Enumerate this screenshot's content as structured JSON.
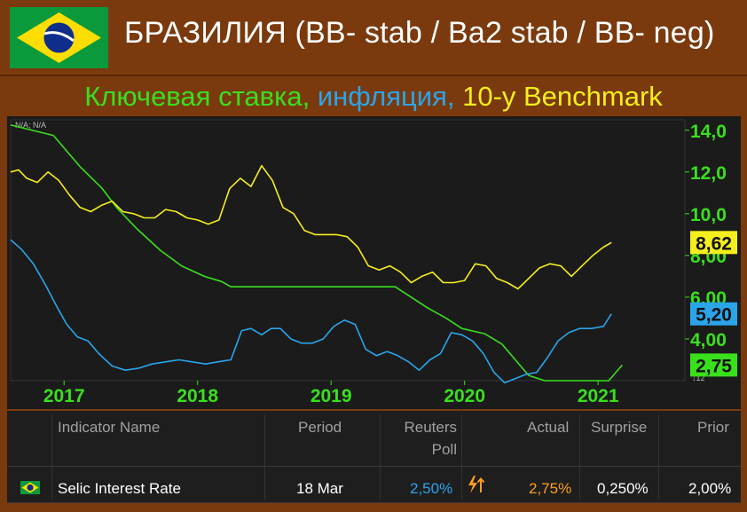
{
  "header": {
    "title": "БРАЗИЛИЯ (BB- stab / Ba2 stab / BB- neg)",
    "flag_icon": "brazil-flag-icon"
  },
  "subtitle": {
    "part1": "Ключевая ставка,",
    "part2": " инфляция,",
    "part3": " 10-y Benchmark",
    "color1": "#39e01c",
    "color2": "#2aa5ea",
    "color3": "#f5ee1c"
  },
  "chart_data": {
    "type": "line",
    "corner_label": "-N/A; N/A",
    "scale_label": "↓12",
    "x_ticks": [
      "2017",
      "2018",
      "2019",
      "2020",
      "2021"
    ],
    "y_ticks": [
      "4,00",
      "6,00",
      "8,00",
      "10,0",
      "12,0",
      "14,0"
    ],
    "ylim": [
      2.0,
      14.5
    ],
    "xlim": [
      2016.6,
      2021.65
    ],
    "series": [
      {
        "color": "#39e01c",
        "last_label": "2,75",
        "points": [
          [
            2016.6,
            14.25
          ],
          [
            2016.92,
            13.75
          ],
          [
            2017.12,
            12.25
          ],
          [
            2017.28,
            11.25
          ],
          [
            2017.4,
            10.25
          ],
          [
            2017.55,
            9.25
          ],
          [
            2017.72,
            8.25
          ],
          [
            2017.88,
            7.5
          ],
          [
            2018.05,
            7.0
          ],
          [
            2018.18,
            6.75
          ],
          [
            2018.25,
            6.5
          ],
          [
            2019.48,
            6.5
          ],
          [
            2019.6,
            6.0
          ],
          [
            2019.72,
            5.5
          ],
          [
            2019.86,
            5.0
          ],
          [
            2019.98,
            4.5
          ],
          [
            2020.15,
            4.25
          ],
          [
            2020.28,
            3.75
          ],
          [
            2020.38,
            3.0
          ],
          [
            2020.48,
            2.25
          ],
          [
            2020.6,
            2.0
          ],
          [
            2021.0,
            2.0
          ],
          [
            2021.08,
            2.0
          ],
          [
            2021.18,
            2.75
          ]
        ]
      },
      {
        "color": "#2aa5ea",
        "last_label": "5,20",
        "points": [
          [
            2016.6,
            8.75
          ],
          [
            2016.68,
            8.3
          ],
          [
            2016.77,
            7.6
          ],
          [
            2016.86,
            6.6
          ],
          [
            2016.95,
            5.5
          ],
          [
            2017.02,
            4.7
          ],
          [
            2017.1,
            4.1
          ],
          [
            2017.18,
            3.9
          ],
          [
            2017.26,
            3.3
          ],
          [
            2017.36,
            2.7
          ],
          [
            2017.46,
            2.5
          ],
          [
            2017.56,
            2.6
          ],
          [
            2017.66,
            2.8
          ],
          [
            2017.76,
            2.9
          ],
          [
            2017.86,
            3.0
          ],
          [
            2017.96,
            2.9
          ],
          [
            2018.06,
            2.8
          ],
          [
            2018.15,
            2.9
          ],
          [
            2018.25,
            3.0
          ],
          [
            2018.33,
            4.4
          ],
          [
            2018.4,
            4.5
          ],
          [
            2018.48,
            4.2
          ],
          [
            2018.55,
            4.5
          ],
          [
            2018.62,
            4.5
          ],
          [
            2018.7,
            4.0
          ],
          [
            2018.78,
            3.8
          ],
          [
            2018.86,
            3.8
          ],
          [
            2018.94,
            4.0
          ],
          [
            2019.02,
            4.6
          ],
          [
            2019.1,
            4.9
          ],
          [
            2019.18,
            4.7
          ],
          [
            2019.26,
            3.5
          ],
          [
            2019.34,
            3.2
          ],
          [
            2019.42,
            3.4
          ],
          [
            2019.5,
            3.2
          ],
          [
            2019.58,
            2.9
          ],
          [
            2019.66,
            2.5
          ],
          [
            2019.74,
            3.0
          ],
          [
            2019.82,
            3.3
          ],
          [
            2019.9,
            4.3
          ],
          [
            2019.98,
            4.2
          ],
          [
            2020.06,
            3.9
          ],
          [
            2020.14,
            3.3
          ],
          [
            2020.22,
            2.4
          ],
          [
            2020.3,
            1.9
          ],
          [
            2020.38,
            2.1
          ],
          [
            2020.46,
            2.3
          ],
          [
            2020.54,
            2.4
          ],
          [
            2020.62,
            3.1
          ],
          [
            2020.7,
            3.9
          ],
          [
            2020.78,
            4.3
          ],
          [
            2020.86,
            4.5
          ],
          [
            2020.95,
            4.5
          ],
          [
            2021.04,
            4.6
          ],
          [
            2021.1,
            5.2
          ]
        ]
      },
      {
        "color": "#f5ee1c",
        "last_label": "8,62",
        "points": [
          [
            2016.6,
            12.0
          ],
          [
            2016.66,
            12.1
          ],
          [
            2016.72,
            11.7
          ],
          [
            2016.8,
            11.5
          ],
          [
            2016.88,
            12.0
          ],
          [
            2016.96,
            11.6
          ],
          [
            2017.04,
            10.9
          ],
          [
            2017.12,
            10.3
          ],
          [
            2017.2,
            10.1
          ],
          [
            2017.28,
            10.4
          ],
          [
            2017.36,
            10.6
          ],
          [
            2017.44,
            10.1
          ],
          [
            2017.52,
            10.0
          ],
          [
            2017.6,
            9.8
          ],
          [
            2017.68,
            9.8
          ],
          [
            2017.76,
            10.2
          ],
          [
            2017.84,
            10.1
          ],
          [
            2017.92,
            9.8
          ],
          [
            2018.0,
            9.7
          ],
          [
            2018.08,
            9.5
          ],
          [
            2018.16,
            9.7
          ],
          [
            2018.24,
            11.2
          ],
          [
            2018.32,
            11.7
          ],
          [
            2018.4,
            11.3
          ],
          [
            2018.48,
            12.3
          ],
          [
            2018.56,
            11.6
          ],
          [
            2018.64,
            10.3
          ],
          [
            2018.72,
            10.0
          ],
          [
            2018.8,
            9.2
          ],
          [
            2018.88,
            9.0
          ],
          [
            2018.96,
            9.0
          ],
          [
            2019.04,
            9.0
          ],
          [
            2019.12,
            8.9
          ],
          [
            2019.2,
            8.4
          ],
          [
            2019.28,
            7.5
          ],
          [
            2019.36,
            7.3
          ],
          [
            2019.44,
            7.5
          ],
          [
            2019.52,
            7.2
          ],
          [
            2019.6,
            6.7
          ],
          [
            2019.68,
            7.0
          ],
          [
            2019.76,
            7.2
          ],
          [
            2019.84,
            6.7
          ],
          [
            2019.92,
            6.7
          ],
          [
            2020.0,
            6.8
          ],
          [
            2020.08,
            7.6
          ],
          [
            2020.16,
            7.5
          ],
          [
            2020.24,
            6.9
          ],
          [
            2020.32,
            6.7
          ],
          [
            2020.4,
            6.4
          ],
          [
            2020.48,
            6.9
          ],
          [
            2020.56,
            7.4
          ],
          [
            2020.64,
            7.6
          ],
          [
            2020.72,
            7.5
          ],
          [
            2020.8,
            7.0
          ],
          [
            2020.88,
            7.5
          ],
          [
            2020.96,
            8.0
          ],
          [
            2021.04,
            8.4
          ],
          [
            2021.1,
            8.62
          ]
        ]
      }
    ]
  },
  "table": {
    "headers": {
      "name": "Indicator Name",
      "period": "Period",
      "poll_line1": "Reuters",
      "poll_line2": "Poll",
      "actual": "Actual",
      "surprise": "Surprise",
      "prior": "Prior"
    },
    "row": {
      "flag_icon": "brazil-flag-icon",
      "name": "Selic Interest Rate",
      "period": "18 Mar",
      "poll": "2,50%",
      "poll_color": "#2aa5ea",
      "surprise_icon": "lightning-up-arrow-icon",
      "actual": "2,75%",
      "actual_color": "#ff9d1a",
      "surprise": "0,250%",
      "prior": "2,00%"
    }
  }
}
